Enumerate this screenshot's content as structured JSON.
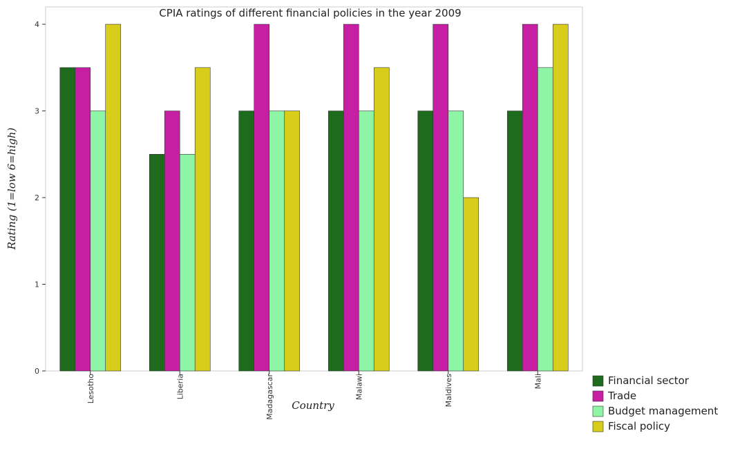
{
  "chart_data": {
    "type": "bar",
    "title": "CPIA ratings of different financial policies in the year 2009",
    "xlabel": "Country",
    "ylabel": "Rating (1=low 6=high)",
    "categories": [
      "Lesotho",
      "Liberia",
      "Madagascar",
      "Malawi",
      "Maldives",
      "Mali"
    ],
    "ylim": [
      0,
      4.2
    ],
    "yticks": [
      0,
      1,
      2,
      3,
      4
    ],
    "legend_position": "bottom-right",
    "grid": false,
    "series": [
      {
        "name": "Financial sector",
        "color": "#1e6b1e",
        "values": [
          3.5,
          2.5,
          3.0,
          3.0,
          3.0,
          3.0
        ]
      },
      {
        "name": "Trade",
        "color": "#c71fa3",
        "values": [
          3.5,
          3.0,
          4.0,
          4.0,
          4.0,
          4.0
        ]
      },
      {
        "name": "Budget management",
        "color": "#8ff5a6",
        "values": [
          3.0,
          2.5,
          3.0,
          3.0,
          3.0,
          3.5
        ]
      },
      {
        "name": "Fiscal policy",
        "color": "#d8cd1a",
        "values": [
          4.0,
          3.5,
          3.0,
          3.5,
          2.0,
          4.0
        ]
      }
    ]
  }
}
